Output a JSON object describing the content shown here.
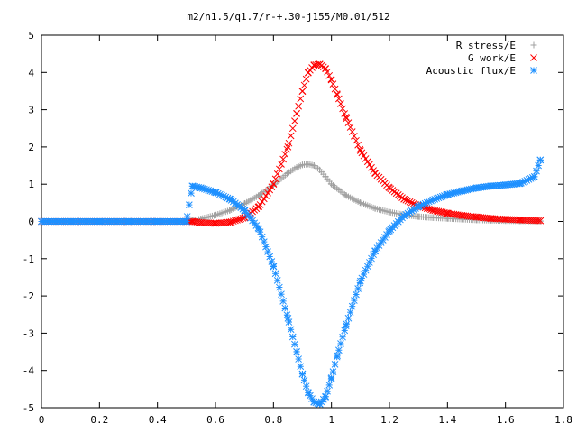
{
  "chart_data": {
    "type": "scatter",
    "title": "m2/n1.5/q1.7/r-+.30-j155/M0.01/512",
    "xlabel": "",
    "ylabel": "",
    "xlim": [
      0,
      1.8
    ],
    "ylim": [
      -5,
      5
    ],
    "xticks": [
      "0",
      "0.2",
      "0.4",
      "0.6",
      "0.8",
      "1",
      "1.2",
      "1.4",
      "1.6",
      "1.8"
    ],
    "yticks": [
      "-5",
      "-4",
      "-3",
      "-2",
      "-1",
      "0",
      "1",
      "2",
      "3",
      "4",
      "5"
    ],
    "grid": false,
    "legend": "top-right",
    "series": [
      {
        "name": "R stress/E",
        "marker": "plus",
        "color": "#a0a0a0",
        "x": [
          0.0,
          0.1,
          0.2,
          0.3,
          0.4,
          0.5,
          0.52,
          0.55,
          0.6,
          0.65,
          0.7,
          0.75,
          0.8,
          0.85,
          0.88,
          0.9,
          0.92,
          0.94,
          0.96,
          0.98,
          1.0,
          1.05,
          1.1,
          1.15,
          1.2,
          1.25,
          1.3,
          1.35,
          1.4,
          1.45,
          1.5,
          1.55,
          1.6,
          1.65,
          1.72
        ],
        "y": [
          0,
          0,
          0,
          0,
          0,
          0,
          0.02,
          0.07,
          0.17,
          0.3,
          0.48,
          0.7,
          0.98,
          1.3,
          1.45,
          1.52,
          1.54,
          1.5,
          1.38,
          1.2,
          1.0,
          0.7,
          0.5,
          0.35,
          0.25,
          0.18,
          0.13,
          0.1,
          0.08,
          0.06,
          0.04,
          0.03,
          0.02,
          0.015,
          0.01
        ]
      },
      {
        "name": "G work/E",
        "marker": "cross",
        "color": "#ff0000",
        "x": [
          0.0,
          0.1,
          0.2,
          0.3,
          0.4,
          0.5,
          0.52,
          0.55,
          0.6,
          0.65,
          0.7,
          0.75,
          0.8,
          0.85,
          0.88,
          0.9,
          0.92,
          0.94,
          0.96,
          0.98,
          1.0,
          1.02,
          1.05,
          1.1,
          1.15,
          1.2,
          1.25,
          1.3,
          1.35,
          1.4,
          1.45,
          1.5,
          1.55,
          1.6,
          1.65,
          1.72
        ],
        "y": [
          0,
          0,
          0,
          0,
          0,
          0,
          0.0,
          -0.03,
          -0.05,
          -0.02,
          0.1,
          0.4,
          1.0,
          2.0,
          2.9,
          3.5,
          4.0,
          4.2,
          4.22,
          4.1,
          3.8,
          3.4,
          2.8,
          1.9,
          1.3,
          0.9,
          0.6,
          0.42,
          0.3,
          0.22,
          0.16,
          0.12,
          0.08,
          0.06,
          0.04,
          0.02
        ]
      },
      {
        "name": "Acoustic flux/E",
        "marker": "star",
        "color": "#1e90ff",
        "x": [
          0.0,
          0.1,
          0.2,
          0.3,
          0.4,
          0.5,
          0.52,
          0.55,
          0.6,
          0.65,
          0.7,
          0.75,
          0.8,
          0.85,
          0.88,
          0.9,
          0.92,
          0.94,
          0.96,
          0.98,
          1.0,
          1.02,
          1.05,
          1.1,
          1.15,
          1.2,
          1.25,
          1.3,
          1.35,
          1.4,
          1.45,
          1.5,
          1.55,
          1.6,
          1.65,
          1.7,
          1.72
        ],
        "y": [
          0,
          0,
          0,
          0,
          0,
          0,
          0.95,
          0.9,
          0.78,
          0.6,
          0.3,
          -0.2,
          -1.2,
          -2.6,
          -3.5,
          -4.1,
          -4.6,
          -4.85,
          -4.9,
          -4.7,
          -4.2,
          -3.6,
          -2.8,
          -1.6,
          -0.8,
          -0.25,
          0.15,
          0.4,
          0.58,
          0.72,
          0.82,
          0.9,
          0.95,
          0.98,
          1.02,
          1.2,
          1.65
        ]
      }
    ]
  }
}
